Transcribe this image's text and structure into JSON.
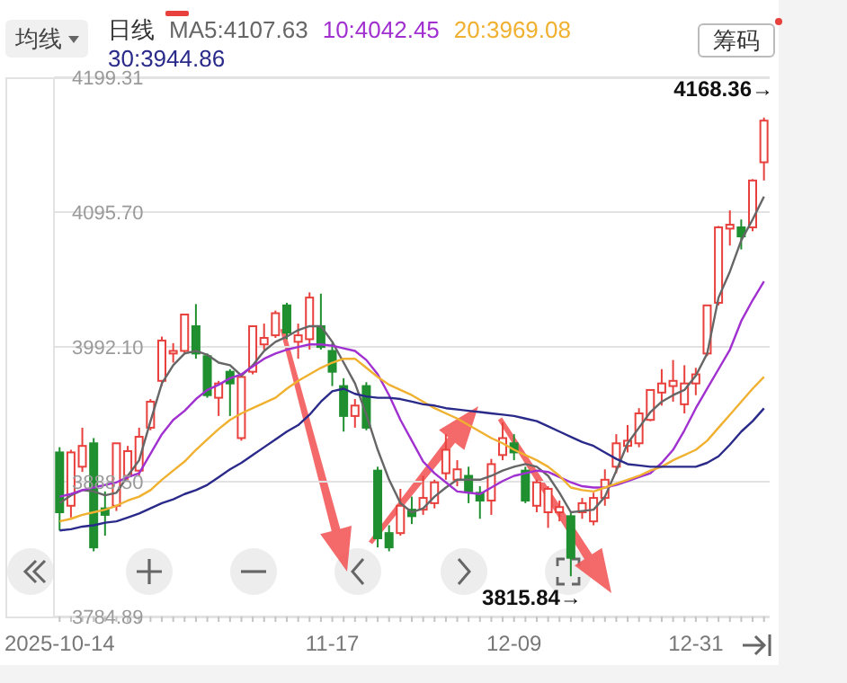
{
  "chart_data": {
    "type": "candlestick",
    "categories": [
      "2025-10-14",
      null,
      null,
      null,
      null,
      null,
      null,
      null,
      null,
      null,
      null,
      null,
      null,
      null,
      null,
      null,
      null,
      null,
      null,
      null,
      null,
      null,
      null,
      null,
      "11-17",
      null,
      null,
      null,
      null,
      null,
      null,
      null,
      null,
      null,
      null,
      null,
      null,
      null,
      null,
      null,
      "12-09",
      null,
      null,
      null,
      null,
      null,
      null,
      null,
      null,
      null,
      null,
      null,
      null,
      null,
      null,
      null,
      "12-31",
      null,
      null,
      null,
      null,
      null,
      null
    ],
    "ohlc": [
      [
        3911,
        3915,
        3851,
        3865
      ],
      [
        3870,
        3913,
        3861,
        3911
      ],
      [
        3900,
        3930,
        3896,
        3916
      ],
      [
        3918,
        3922,
        3835,
        3838
      ],
      [
        3868,
        3881,
        3847,
        3863
      ],
      [
        3870,
        3918,
        3866,
        3918
      ],
      [
        3893,
        3916,
        3890,
        3912
      ],
      [
        3897,
        3930,
        3893,
        3923
      ],
      [
        3930,
        3952,
        3928,
        3950
      ],
      [
        3966,
        4000,
        3962,
        3997
      ],
      [
        3987,
        3995,
        3980,
        3989
      ],
      [
        3989,
        4017,
        3987,
        4017
      ],
      [
        4008,
        4025,
        3983,
        3987
      ],
      [
        3985,
        3987,
        3953,
        3955
      ],
      [
        3953,
        3966,
        3939,
        3964
      ],
      [
        3973,
        3975,
        3939,
        3964
      ],
      [
        3922,
        3970,
        3920,
        3969
      ],
      [
        3973,
        4008,
        3971,
        4008
      ],
      [
        3994,
        4010,
        3990,
        3999
      ],
      [
        4001,
        4020,
        3999,
        4018
      ],
      [
        4024,
        4026,
        3998,
        4003
      ],
      [
        3996,
        4010,
        3983,
        4001
      ],
      [
        3998,
        4034,
        3990,
        4030
      ],
      [
        4008,
        4033,
        3990,
        3992
      ],
      [
        3989,
        3995,
        3962,
        3973
      ],
      [
        3962,
        3968,
        3927,
        3939
      ],
      [
        3939,
        3952,
        3930,
        3947
      ],
      [
        3962,
        3965,
        3928,
        3930
      ],
      [
        3897,
        3900,
        3838,
        3845
      ],
      [
        3849,
        3855,
        3835,
        3838
      ],
      [
        3849,
        3883,
        3847,
        3870
      ],
      [
        3867,
        3877,
        3856,
        3862
      ],
      [
        3867,
        3893,
        3863,
        3876
      ],
      [
        3872,
        3890,
        3868,
        3888
      ],
      [
        3895,
        3925,
        3890,
        3913
      ],
      [
        3890,
        3905,
        3885,
        3898
      ],
      [
        3893,
        3900,
        3872,
        3881
      ],
      [
        3880,
        3885,
        3860,
        3874
      ],
      [
        3874,
        3906,
        3863,
        3902
      ],
      [
        3909,
        3934,
        3905,
        3922
      ],
      [
        3918,
        3925,
        3905,
        3911
      ],
      [
        3897,
        3900,
        3872,
        3874
      ],
      [
        3870,
        3890,
        3865,
        3888
      ],
      [
        3865,
        3885,
        3853,
        3883
      ],
      [
        3865,
        3874,
        3858,
        3869
      ],
      [
        3862,
        3865,
        3815.84,
        3830
      ],
      [
        3865,
        3876,
        3860,
        3872
      ],
      [
        3858,
        3880,
        3855,
        3876
      ],
      [
        3876,
        3898,
        3870,
        3890
      ],
      [
        3900,
        3925,
        3895,
        3918
      ],
      [
        3916,
        3932,
        3911,
        3920
      ],
      [
        3918,
        3945,
        3915,
        3941
      ],
      [
        3936,
        3959,
        3935,
        3959
      ],
      [
        3957,
        3975,
        3947,
        3964
      ],
      [
        3962,
        3982,
        3950,
        3966
      ],
      [
        3948,
        3978,
        3941,
        3964
      ],
      [
        3964,
        3976,
        3955,
        3971
      ],
      [
        3987,
        4024,
        3985,
        4024
      ],
      [
        4026,
        4085,
        4024,
        4084
      ],
      [
        4083,
        4097,
        4070,
        4086
      ],
      [
        4084,
        4090,
        4067,
        4077
      ],
      [
        4084,
        4121,
        4081,
        4120
      ],
      [
        4134,
        4168.36,
        4120,
        4166
      ]
    ],
    "series": [
      {
        "name": "MA5:4107.63",
        "type": "line",
        "color": "#666666",
        "values": [
          3872,
          3878,
          3882,
          3881,
          3878,
          3880,
          3893,
          3905,
          3935,
          3964,
          3978,
          3987,
          3989,
          3986,
          3980,
          3978,
          3970,
          3978,
          3989,
          3996,
          4000,
          4005,
          4008,
          4008,
          3996,
          3980,
          3964,
          3940,
          3913,
          3890,
          3872,
          3865,
          3868,
          3877,
          3884,
          3890,
          3890,
          3890,
          3893,
          3897,
          3900,
          3902,
          3900,
          3893,
          3880,
          3865,
          3866,
          3867,
          3877,
          3897,
          3918,
          3930,
          3942,
          3950,
          3955,
          3959,
          3970,
          3987,
          4030,
          4050,
          4074,
          4090,
          4107.63
        ]
      },
      {
        "name": "10:4042.45",
        "type": "line",
        "color": "#a030d0",
        "values": [
          3877,
          3879,
          3882,
          3884,
          3886,
          3888,
          3892,
          3895,
          3910,
          3925,
          3936,
          3943,
          3952,
          3959,
          3963,
          3968,
          3971,
          3977,
          3983,
          3987,
          3990,
          3992,
          3994,
          3994,
          3993,
          3991,
          3989,
          3982,
          3971,
          3955,
          3936,
          3920,
          3904,
          3895,
          3888,
          3881,
          3880,
          3879,
          3884,
          3889,
          3893,
          3895,
          3897,
          3896,
          3892,
          3888,
          3885,
          3884,
          3884,
          3886,
          3889,
          3892,
          3895,
          3903,
          3913,
          3928,
          3945,
          3960,
          3975,
          3990,
          4012,
          4028,
          4042.45
        ]
      },
      {
        "name": "20:3969.08",
        "type": "line",
        "color": "#f0b030",
        "values": [
          3858,
          3860,
          3863,
          3865,
          3867,
          3870,
          3874,
          3877,
          3882,
          3890,
          3897,
          3904,
          3913,
          3921,
          3929,
          3936,
          3941,
          3945,
          3949,
          3953,
          3960,
          3966,
          3971,
          3976,
          3980,
          3983,
          3983,
          3976,
          3969,
          3963,
          3959,
          3955,
          3950,
          3945,
          3941,
          3937,
          3932,
          3927,
          3922,
          3918,
          3913,
          3909,
          3905,
          3900,
          3893,
          3884,
          3882,
          3881,
          3884,
          3887,
          3890,
          3893,
          3897,
          3900,
          3905,
          3909,
          3913,
          3920,
          3930,
          3940,
          3950,
          3960,
          3969.08
        ]
      },
      {
        "name": "30:3944.86",
        "type": "line",
        "color": "#2a2a8a",
        "values": [
          3851,
          3852,
          3854,
          3855,
          3857,
          3858,
          3861,
          3864,
          3868,
          3872,
          3875,
          3879,
          3882,
          3886,
          3892,
          3898,
          3903,
          3909,
          3915,
          3921,
          3927,
          3932,
          3940,
          3950,
          3958,
          3960,
          3956,
          3954,
          3953,
          3953,
          3952,
          3950,
          3948,
          3947,
          3945,
          3944,
          3943,
          3942,
          3941,
          3940,
          3939,
          3937,
          3935,
          3931,
          3927,
          3923,
          3919,
          3916,
          3911,
          3906,
          3902,
          3901,
          3900,
          3900,
          3900,
          3900,
          3900,
          3903,
          3908,
          3917,
          3927,
          3935,
          3944.86
        ]
      }
    ],
    "ylim": [
      3784.89,
      4199.31
    ],
    "yticks": [
      4199.31,
      {
        "value": 4095.7,
        "label": "4095.70"
      },
      {
        "value": 3992.1,
        "label": "3992.10"
      },
      {
        "value": 3888.5,
        "label": "3888.50"
      },
      3784.89
    ],
    "grid": "y",
    "legend": "top left",
    "annotations": [
      "均线",
      "日线",
      "筹码",
      "4168.36→",
      "3815.84→"
    ]
  }
}
